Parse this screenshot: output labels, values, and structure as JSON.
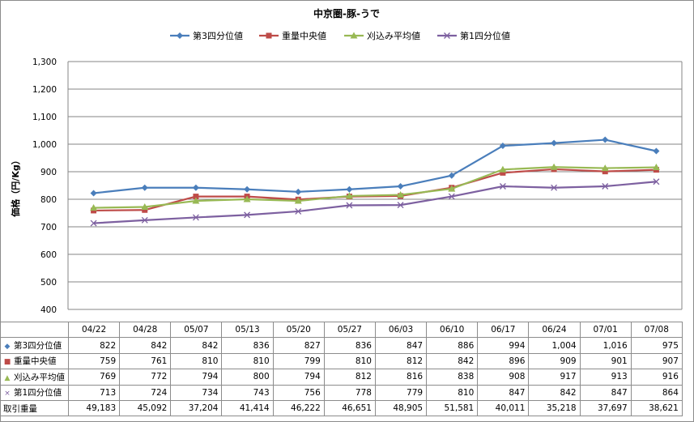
{
  "chart_data": {
    "type": "line",
    "title": "中京圏-豚-うで",
    "ylabel": "価格（円/Kg）",
    "ylim": [
      400,
      1300
    ],
    "yticks": [
      "400",
      "500",
      "600",
      "700",
      "800",
      "900",
      "1,000",
      "1,100",
      "1,200",
      "1,300"
    ],
    "ytick_values": [
      400,
      500,
      600,
      700,
      800,
      900,
      1000,
      1100,
      1200,
      1300
    ],
    "grid": true,
    "legend_position": "top",
    "categories": [
      "04/22",
      "04/28",
      "05/07",
      "05/13",
      "05/20",
      "05/27",
      "06/03",
      "06/10",
      "06/17",
      "06/24",
      "07/01",
      "07/08"
    ],
    "series": [
      {
        "name": "第3四分位値",
        "color": "#4a7ebb",
        "marker": "diamond",
        "values": [
          822,
          842,
          842,
          836,
          827,
          836,
          847,
          886,
          994,
          1004,
          1016,
          975
        ],
        "labels": [
          "822",
          "842",
          "842",
          "836",
          "827",
          "836",
          "847",
          "886",
          "994",
          "1,004",
          "1,016",
          "975"
        ]
      },
      {
        "name": "重量中央値",
        "color": "#be4b48",
        "marker": "square",
        "values": [
          759,
          761,
          810,
          810,
          799,
          810,
          812,
          842,
          896,
          909,
          901,
          907
        ],
        "labels": [
          "759",
          "761",
          "810",
          "810",
          "799",
          "810",
          "812",
          "842",
          "896",
          "909",
          "901",
          "907"
        ]
      },
      {
        "name": "刈込み平均値",
        "color": "#98b954",
        "marker": "triangle",
        "values": [
          769,
          772,
          794,
          800,
          794,
          812,
          816,
          838,
          908,
          917,
          913,
          916
        ],
        "labels": [
          "769",
          "772",
          "794",
          "800",
          "794",
          "812",
          "816",
          "838",
          "908",
          "917",
          "913",
          "916"
        ]
      },
      {
        "name": "第1四分位値",
        "color": "#7d60a0",
        "marker": "x",
        "values": [
          713,
          724,
          734,
          743,
          756,
          778,
          779,
          810,
          847,
          842,
          847,
          864
        ],
        "labels": [
          "713",
          "724",
          "734",
          "743",
          "756",
          "778",
          "779",
          "810",
          "847",
          "842",
          "847",
          "864"
        ]
      }
    ],
    "extra_row": {
      "name": "取引重量",
      "values": [
        49183,
        45092,
        37204,
        41414,
        46222,
        46651,
        48905,
        51581,
        40011,
        35218,
        37697,
        38621
      ],
      "labels": [
        "49,183",
        "45,092",
        "37,204",
        "41,414",
        "46,222",
        "46,651",
        "48,905",
        "51,581",
        "40,011",
        "35,218",
        "37,697",
        "38,621"
      ]
    }
  }
}
